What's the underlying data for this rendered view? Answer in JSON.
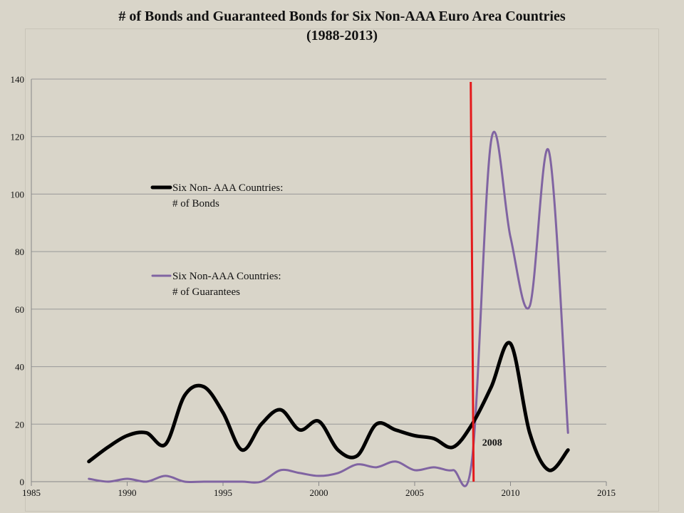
{
  "chart_data": {
    "type": "line",
    "title_line1": "# of Bonds and Guaranteed Bonds for Six Non-AAA Euro Area Countries",
    "title_line2": "(1988-2013)",
    "xlim": [
      1985,
      2015
    ],
    "ylim": [
      0,
      140
    ],
    "x_ticks": [
      "1985",
      "1990",
      "1995",
      "2000",
      "2005",
      "2010",
      "2015"
    ],
    "y_ticks": [
      "0",
      "20",
      "40",
      "60",
      "80",
      "100",
      "120",
      "140"
    ],
    "grid": "horizontal",
    "legend_position": "left-middle",
    "x": [
      1988,
      1989,
      1990,
      1991,
      1992,
      1993,
      1994,
      1995,
      1996,
      1997,
      1998,
      1999,
      2000,
      2001,
      2002,
      2003,
      2004,
      2005,
      2006,
      2007,
      2008,
      2009,
      2010,
      2011,
      2012,
      2013
    ],
    "series": [
      {
        "name_line1": "Six Non- AAA Countries:",
        "name_line2": "# of Bonds",
        "color": "#000000",
        "values": [
          7,
          12,
          16,
          17,
          13,
          30,
          33,
          24,
          11,
          20,
          25,
          18,
          21,
          11,
          9,
          20,
          18,
          16,
          15,
          12,
          20,
          33,
          48,
          17,
          4,
          11
        ]
      },
      {
        "name_line1": "Six Non-AAA Countries:",
        "name_line2": "# of Guarantees",
        "color": "#8064a2",
        "values": [
          1,
          0,
          1,
          0,
          2,
          0,
          0,
          0,
          0,
          0,
          4,
          3,
          2,
          3,
          6,
          5,
          7,
          4,
          5,
          4,
          8,
          119,
          85,
          61,
          115,
          17
        ]
      }
    ],
    "marker_line": {
      "x": 2008,
      "color": "#e41a1c"
    },
    "annotation": "2008"
  }
}
